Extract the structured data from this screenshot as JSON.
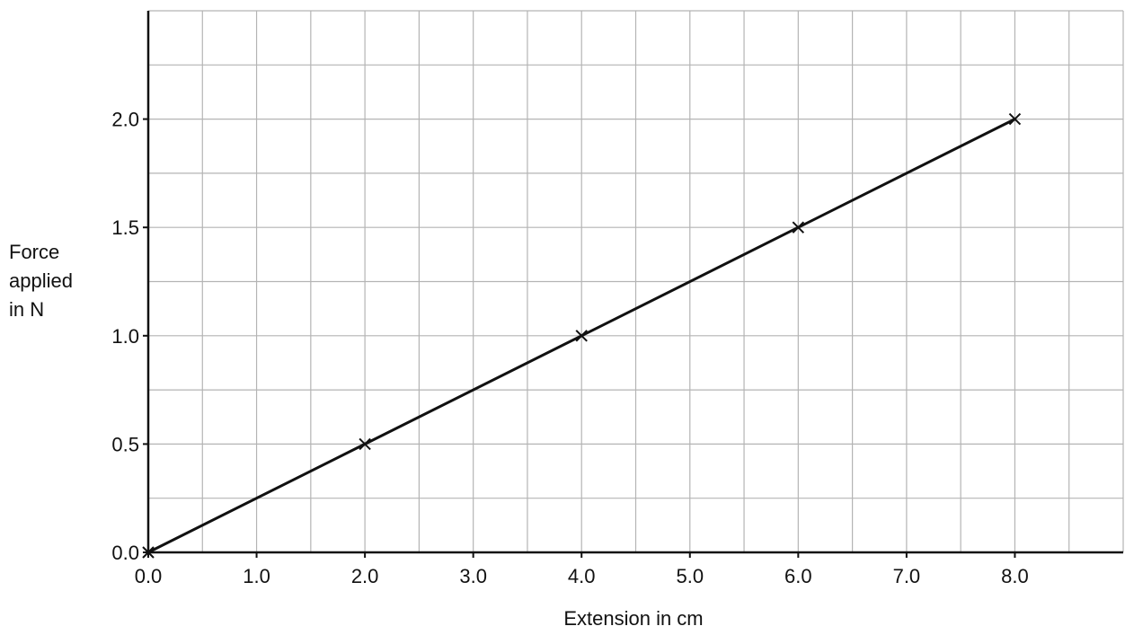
{
  "chart_data": {
    "type": "line",
    "title": "",
    "xlabel": "Extension in cm",
    "ylabel_lines": [
      "Force",
      "applied",
      "in N"
    ],
    "xlim": [
      0,
      9
    ],
    "ylim": [
      0,
      2.5
    ],
    "x_minor_step": 0.5,
    "y_minor_step": 0.25,
    "x_ticks": [
      0,
      1,
      2,
      3,
      4,
      5,
      6,
      7,
      8
    ],
    "x_tick_labels": [
      "0.0",
      "1.0",
      "2.0",
      "3.0",
      "4.0",
      "5.0",
      "6.0",
      "7.0",
      "8.0"
    ],
    "y_ticks": [
      0,
      0.5,
      1.0,
      1.5,
      2.0
    ],
    "y_tick_labels": [
      "0.0",
      "0.5",
      "1.0",
      "1.5",
      "2.0"
    ],
    "grid": true,
    "legend": "none",
    "series": [
      {
        "x": [
          0,
          2,
          4,
          6,
          8
        ],
        "y": [
          0,
          0.5,
          1.0,
          1.5,
          2.0
        ],
        "marker": "x",
        "line": true
      }
    ],
    "colors": {
      "grid": "#b4b4b4",
      "axis": "#111111",
      "line": "#111111"
    }
  }
}
